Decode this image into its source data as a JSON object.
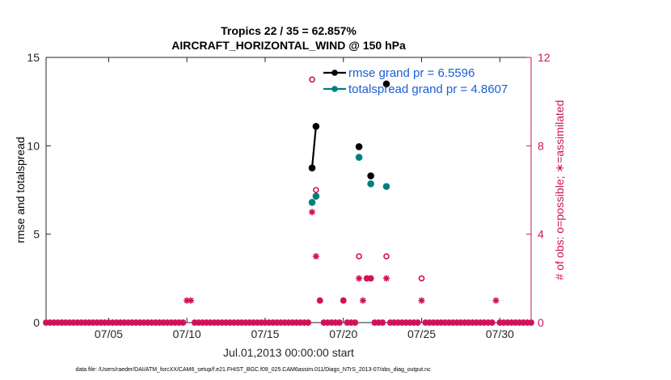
{
  "chart_data": {
    "type": "line",
    "title_line1": "Tropics 22 / 35 = 62.857%",
    "title_line2": "AIRCRAFT_HORIZONTAL_WIND @ 150 hPa",
    "ylabel_left": "rmse and totalspread",
    "ylabel_right": "# of obs: o=possible; ∗=assimilated",
    "xlabel": "Jul.01,2013 00:00:00 start",
    "footer": "data file: /Users/raeder/DAI/ATM_forcXX/CAM6_setup/f.e21.FHIST_BGC.f09_025.CAM6assim.011/Diags_NTrS_2013-07/obs_diag_output.nc",
    "xlim": [
      1,
      32
    ],
    "ylim_left": [
      0,
      15
    ],
    "ylim_right": [
      0,
      12
    ],
    "x_ticks": [
      5,
      10,
      15,
      20,
      25,
      30
    ],
    "x_tick_labels": [
      "07/05",
      "07/10",
      "07/15",
      "07/20",
      "07/25",
      "07/30"
    ],
    "y_ticks_left": [
      0,
      5,
      10,
      15
    ],
    "y_ticks_right": [
      0,
      4,
      8,
      12
    ],
    "colors": {
      "rmse": "#000000",
      "totalspread": "#007f7f",
      "obs": "#d1105a",
      "legend_text": "#1a5fd6"
    },
    "legend": {
      "placement": "top-right",
      "entries": [
        "rmse grand pr = 6.5596",
        "totalspread grand pr = 4.8607"
      ]
    },
    "series": [
      {
        "name": "rmse",
        "axis": "left",
        "points": [
          [
            18.0,
            8.75
          ],
          [
            18.25,
            11.1
          ],
          [
            21.0,
            9.95
          ],
          [
            21.75,
            8.3
          ],
          [
            22.75,
            13.5
          ]
        ],
        "segments": [
          [
            0,
            1
          ]
        ]
      },
      {
        "name": "totalspread",
        "axis": "left",
        "points": [
          [
            18.0,
            6.8
          ],
          [
            18.25,
            7.15
          ],
          [
            21.0,
            9.35
          ],
          [
            21.75,
            7.85
          ],
          [
            22.75,
            7.7
          ]
        ]
      },
      {
        "name": "obs_possible",
        "axis": "right",
        "marker": "circle",
        "points": [
          [
            18.0,
            11.0
          ],
          [
            18.25,
            6.0
          ],
          [
            21.0,
            3.0
          ],
          [
            21.75,
            2.0
          ],
          [
            22.75,
            3.0
          ],
          [
            25.0,
            2.0
          ],
          [
            21.5,
            2.0
          ],
          [
            20.0,
            1.0
          ],
          [
            18.5,
            1.0
          ]
        ]
      },
      {
        "name": "obs_assimilated",
        "axis": "right",
        "marker": "asterisk",
        "points": [
          [
            18.0,
            5.0
          ],
          [
            18.25,
            3.0
          ],
          [
            21.0,
            2.0
          ],
          [
            21.75,
            2.0
          ],
          [
            22.75,
            2.0
          ],
          [
            25.0,
            1.0
          ],
          [
            21.5,
            2.0
          ],
          [
            21.25,
            1.0
          ],
          [
            20.0,
            1.0
          ],
          [
            18.5,
            1.0
          ],
          [
            10.0,
            1.0
          ],
          [
            10.25,
            1.0
          ],
          [
            29.75,
            1.0
          ]
        ]
      }
    ]
  }
}
